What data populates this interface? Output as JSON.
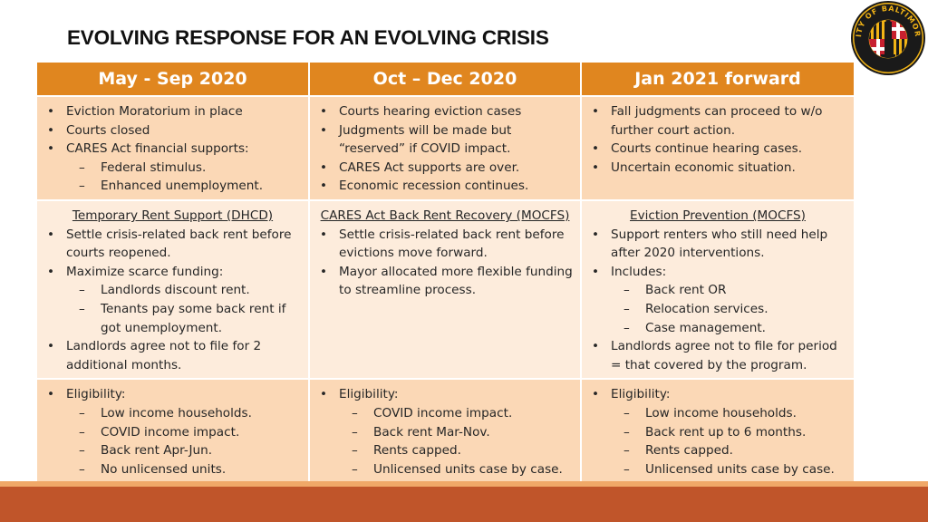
{
  "title": "EVOLVING RESPONSE FOR AN EVOLVING CRISIS",
  "seal": {
    "text": "CITY OF BALTIMORE",
    "colors": {
      "gold": "#f2b416",
      "black": "#1a1a1a",
      "red": "#c8202f"
    }
  },
  "colors": {
    "header": "#e0861f",
    "row_dark": "#fbd8b6",
    "row_light": "#fdecdc",
    "footer": "#c0552a",
    "footer_top": "#f0a868"
  },
  "columns": [
    {
      "header": "May - Sep 2020"
    },
    {
      "header": "Oct – Dec 2020"
    },
    {
      "header": "Jan 2021 forward"
    }
  ],
  "rows": [
    [
      {
        "bullets": [
          {
            "text": "Eviction Moratorium in place"
          },
          {
            "text": "Courts closed"
          },
          {
            "text": "CARES Act financial supports:",
            "subs": [
              "Federal stimulus.",
              "Enhanced unemployment."
            ]
          }
        ]
      },
      {
        "bullets": [
          {
            "text": "Courts hearing eviction cases"
          },
          {
            "text": "Judgments will be made but “reserved” if COVID impact."
          },
          {
            "text": "CARES Act supports are over."
          },
          {
            "text": "Economic recession continues."
          }
        ]
      },
      {
        "bullets": [
          {
            "text": "Fall judgments can proceed to  w/o further court action."
          },
          {
            "text": "Courts continue hearing cases."
          },
          {
            "text": "Uncertain economic situation."
          }
        ]
      }
    ],
    [
      {
        "program": "Temporary Rent Support (DHCD)",
        "bullets": [
          {
            "text": "Settle crisis-related back rent before courts reopened."
          },
          {
            "text": "Maximize scarce funding:",
            "subs": [
              "Landlords discount rent.",
              "Tenants pay some back rent if got unemployment."
            ]
          },
          {
            "text": "Landlords agree not to file for 2 additional months."
          }
        ]
      },
      {
        "program": "CARES Act Back Rent Recovery  (MOCFS)",
        "bullets": [
          {
            "text": "Settle crisis-related back rent before evictions move forward."
          },
          {
            "text": "Mayor allocated more flexible funding to streamline process."
          }
        ]
      },
      {
        "program": "Eviction Prevention (MOCFS)",
        "bullets": [
          {
            "text": "Support renters who still need help after 2020 interventions."
          },
          {
            "text": "Includes:",
            "subs": [
              "Back rent OR",
              "Relocation services.",
              "Case management."
            ]
          },
          {
            "text": "Landlords agree not to file for period = that covered by the program."
          }
        ]
      }
    ],
    [
      {
        "bullets": [
          {
            "text": "Eligibility:",
            "subs": [
              "Low income households.",
              "COVID income impact.",
              "Back rent Apr-Jun.",
              "No unlicensed units."
            ]
          }
        ]
      },
      {
        "bullets": [
          {
            "text": "Eligibility:",
            "subs": [
              "COVID income impact.",
              "Back rent Mar-Nov.",
              "Rents capped.",
              "Unlicensed units case by case."
            ]
          }
        ]
      },
      {
        "bullets": [
          {
            "text": "Eligibility:",
            "subs": [
              "Low income households.",
              "Back rent up to 6 months.",
              "Rents capped.",
              "Unlicensed units case by case."
            ]
          }
        ]
      }
    ]
  ]
}
